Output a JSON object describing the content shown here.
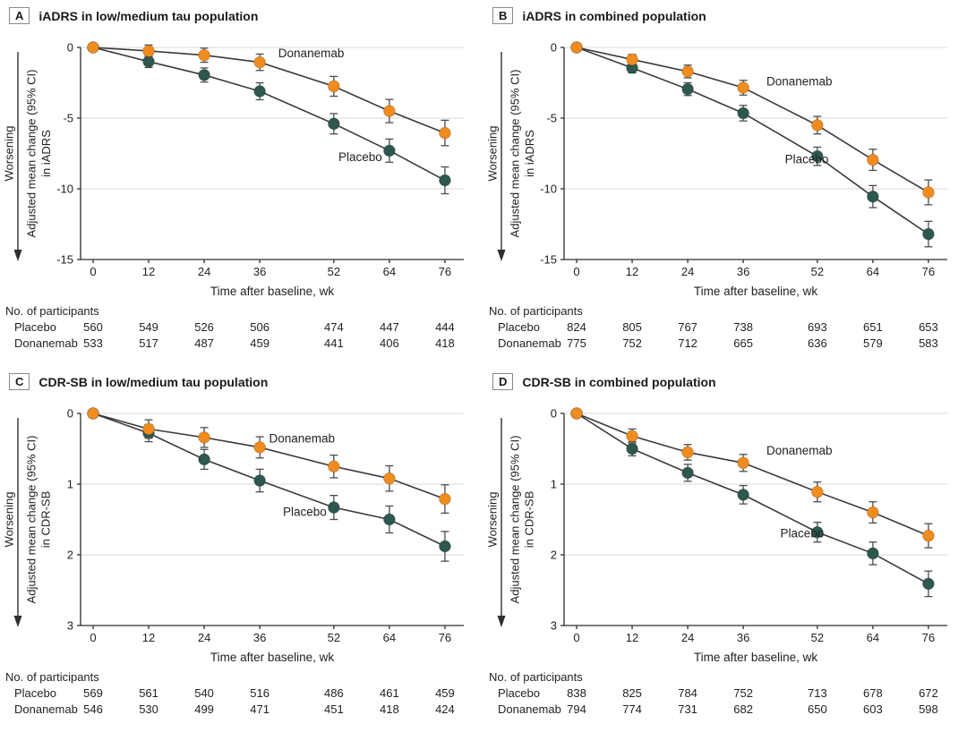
{
  "figure": {
    "worsening_label": "Worsening",
    "participants_header": "No. of participants",
    "xlabel": "Time after baseline, wk",
    "colors": {
      "donanemab": "#F08C1E",
      "placebo": "#2D574F",
      "line": "#3A3A3A",
      "error": "#4D4D4D",
      "grid": "#D9D9D9",
      "axis": "#2E2E2E"
    }
  },
  "chart_data": [
    {
      "panel_letter": "A",
      "title": "iADRS in low/medium tau population",
      "type": "line",
      "direction_label": "Worsening",
      "ylabel_lines": [
        "Adjusted mean change (95% CI)",
        "in iADRS"
      ],
      "xlabel": "Time after baseline, wk",
      "weeks": [
        0,
        12,
        24,
        36,
        52,
        64,
        76
      ],
      "yticks": [
        0,
        -5,
        -10,
        -15
      ],
      "ylim": [
        0,
        -15
      ],
      "grid": true,
      "series": [
        {
          "name": "Placebo",
          "key": "placebo",
          "values": [
            0,
            -1.0,
            -1.95,
            -3.1,
            -5.4,
            -7.3,
            -9.4
          ],
          "ci": [
            0,
            0.42,
            0.5,
            0.6,
            0.72,
            0.82,
            0.95
          ],
          "label": {
            "week": 53,
            "value": -8.05
          }
        },
        {
          "name": "Donanemab",
          "key": "donanemab",
          "values": [
            0,
            -0.25,
            -0.55,
            -1.05,
            -2.75,
            -4.5,
            -6.05
          ],
          "ci": [
            0,
            0.42,
            0.5,
            0.58,
            0.7,
            0.82,
            0.9
          ],
          "label": {
            "week": 40,
            "value": -0.7
          }
        }
      ],
      "participants": {
        "header": "No. of participants",
        "rows": [
          {
            "name": "Placebo",
            "values": [
              "560",
              "549",
              "526",
              "506",
              "474",
              "447",
              "444"
            ]
          },
          {
            "name": "Donanemab",
            "values": [
              "533",
              "517",
              "487",
              "459",
              "441",
              "406",
              "418"
            ]
          }
        ]
      }
    },
    {
      "panel_letter": "B",
      "title": "iADRS in combined population",
      "type": "line",
      "direction_label": "Worsening",
      "ylabel_lines": [
        "Adjusted mean change (95% CI)",
        "in iADRS"
      ],
      "xlabel": "Time after baseline, wk",
      "weeks": [
        0,
        12,
        24,
        36,
        52,
        64,
        76
      ],
      "yticks": [
        0,
        -5,
        -10,
        -15
      ],
      "ylim": [
        0,
        -15
      ],
      "grid": true,
      "series": [
        {
          "name": "Placebo",
          "key": "placebo",
          "values": [
            0,
            -1.45,
            -2.95,
            -4.65,
            -7.7,
            -10.55,
            -13.2
          ],
          "ci": [
            0,
            0.35,
            0.45,
            0.55,
            0.65,
            0.78,
            0.9
          ],
          "label": {
            "week": 45,
            "value": -8.2
          }
        },
        {
          "name": "Donanemab",
          "key": "donanemab",
          "values": [
            0,
            -0.85,
            -1.7,
            -2.85,
            -5.5,
            -7.95,
            -10.25
          ],
          "ci": [
            0,
            0.35,
            0.45,
            0.52,
            0.62,
            0.75,
            0.88
          ],
          "label": {
            "week": 41,
            "value": -2.7
          }
        }
      ],
      "participants": {
        "header": "No. of participants",
        "rows": [
          {
            "name": "Placebo",
            "values": [
              "824",
              "805",
              "767",
              "738",
              "693",
              "651",
              "653"
            ]
          },
          {
            "name": "Donanemab",
            "values": [
              "775",
              "752",
              "712",
              "665",
              "636",
              "579",
              "583"
            ]
          }
        ]
      }
    },
    {
      "panel_letter": "C",
      "title": "CDR-SB in low/medium tau population",
      "type": "line",
      "direction_label": "Worsening",
      "ylabel_lines": [
        "Adjusted mean change (95% CI)",
        "in CDR-SB"
      ],
      "xlabel": "Time after baseline, wk",
      "weeks": [
        0,
        12,
        24,
        36,
        52,
        64,
        76
      ],
      "yticks": [
        0,
        1,
        2,
        3
      ],
      "ylim": [
        0,
        3
      ],
      "grid": true,
      "series": [
        {
          "name": "Placebo",
          "key": "placebo",
          "values": [
            0,
            0.28,
            0.65,
            0.95,
            1.33,
            1.5,
            1.88
          ],
          "ci": [
            0,
            0.12,
            0.14,
            0.16,
            0.17,
            0.19,
            0.21
          ],
          "label": {
            "week": 41,
            "value": 1.45
          }
        },
        {
          "name": "Donanemab",
          "key": "donanemab",
          "values": [
            0,
            0.22,
            0.34,
            0.48,
            0.75,
            0.92,
            1.21
          ],
          "ci": [
            0,
            0.13,
            0.14,
            0.15,
            0.16,
            0.18,
            0.2
          ],
          "label": {
            "week": 38,
            "value": 0.41
          }
        }
      ],
      "participants": {
        "header": "No. of participants",
        "rows": [
          {
            "name": "Placebo",
            "values": [
              "569",
              "561",
              "540",
              "516",
              "486",
              "461",
              "459"
            ]
          },
          {
            "name": "Donanemab",
            "values": [
              "546",
              "530",
              "499",
              "471",
              "451",
              "418",
              "424"
            ]
          }
        ]
      }
    },
    {
      "panel_letter": "D",
      "title": "CDR-SB in combined population",
      "type": "line",
      "direction_label": "Worsening",
      "ylabel_lines": [
        "Adjusted mean change (95% CI)",
        "in CDR-SB"
      ],
      "xlabel": "Time after baseline, wk",
      "weeks": [
        0,
        12,
        24,
        36,
        52,
        64,
        76
      ],
      "yticks": [
        0,
        1,
        2,
        3
      ],
      "ylim": [
        0,
        3
      ],
      "grid": true,
      "series": [
        {
          "name": "Placebo",
          "key": "placebo",
          "values": [
            0,
            0.5,
            0.84,
            1.15,
            1.68,
            1.98,
            2.41
          ],
          "ci": [
            0,
            0.1,
            0.12,
            0.13,
            0.14,
            0.16,
            0.18
          ],
          "label": {
            "week": 44,
            "value": 1.75
          }
        },
        {
          "name": "Donanemab",
          "key": "donanemab",
          "values": [
            0,
            0.32,
            0.55,
            0.7,
            1.11,
            1.4,
            1.73
          ],
          "ci": [
            0,
            0.1,
            0.11,
            0.12,
            0.14,
            0.15,
            0.17
          ],
          "label": {
            "week": 41,
            "value": 0.58
          }
        }
      ],
      "participants": {
        "header": "No. of participants",
        "rows": [
          {
            "name": "Placebo",
            "values": [
              "838",
              "825",
              "784",
              "752",
              "713",
              "678",
              "672"
            ]
          },
          {
            "name": "Donanemab",
            "values": [
              "794",
              "774",
              "731",
              "682",
              "650",
              "603",
              "598"
            ]
          }
        ]
      }
    }
  ]
}
